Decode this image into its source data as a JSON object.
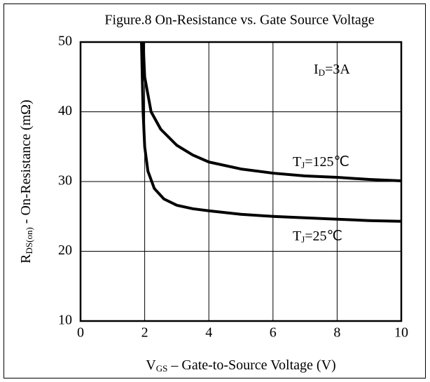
{
  "chart_data": {
    "type": "line",
    "title": "Figure.8 On-Resistance vs. Gate Source Voltage",
    "y_label": {
      "main": "R",
      "sub": "DS(on)",
      "rest": " - On-Resistance (mΩ)"
    },
    "x_label": {
      "main": "V",
      "sub": "GS",
      "rest": " – Gate-to-Source Voltage (V)"
    },
    "annotations": [
      {
        "main": "I",
        "sub": "D",
        "rest": "=3A"
      }
    ],
    "series": [
      {
        "name": {
          "main": "T",
          "sub": "J",
          "rest": "=125℃"
        },
        "color": "#000000",
        "x": [
          1.95,
          2.0,
          2.2,
          2.5,
          3,
          3.5,
          4,
          5,
          6,
          7,
          8,
          9,
          10
        ],
        "values": [
          50,
          45,
          40,
          37.5,
          35.2,
          33.8,
          32.8,
          31.8,
          31.2,
          30.8,
          30.6,
          30.3,
          30.1
        ]
      },
      {
        "name": {
          "main": "T",
          "sub": "J",
          "rest": "=25℃"
        },
        "color": "#000000",
        "x": [
          1.9,
          1.95,
          2.0,
          2.1,
          2.3,
          2.6,
          3,
          3.5,
          4,
          5,
          6,
          7,
          8,
          9,
          10
        ],
        "values": [
          50,
          40,
          35,
          31.5,
          29,
          27.5,
          26.6,
          26.1,
          25.8,
          25.3,
          25,
          24.8,
          24.6,
          24.4,
          24.3
        ]
      }
    ],
    "xlim": [
      0,
      10
    ],
    "xticks": [
      0,
      2,
      4,
      6,
      8,
      10
    ],
    "ylim": [
      10,
      50
    ],
    "yticks": [
      10,
      20,
      30,
      40,
      50
    ],
    "grid": true
  }
}
